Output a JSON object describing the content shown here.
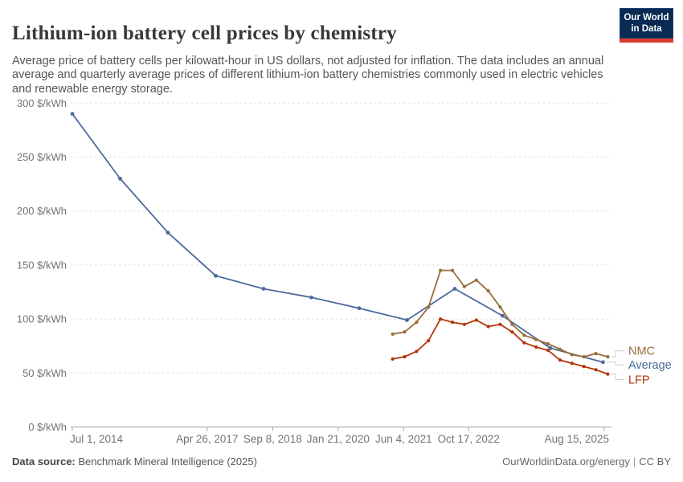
{
  "header": {
    "title": "Lithium-ion battery cell prices by chemistry",
    "subtitle": "Average price of battery cells per kilowatt-hour in US dollars, not adjusted for inflation. The data includes an annual average and quarterly average prices of different lithium-ion battery chemistries commonly used in electric vehicles and renewable energy storage.",
    "logo": {
      "line1": "Our World",
      "line2": "in Data"
    }
  },
  "chart_data": {
    "type": "line",
    "title": "Lithium-ion battery cell prices by chemistry",
    "ylabel": "$/kWh",
    "xlabel": "",
    "grid": true,
    "legend_position": "right-of-line-ends",
    "y_axis": {
      "min": 0,
      "max": 300,
      "tick_step": 50,
      "tick_labels": [
        "0 $/kWh",
        "50 $/kWh",
        "100 $/kWh",
        "150 $/kWh",
        "200 $/kWh",
        "250 $/kWh",
        "300 $/kWh"
      ]
    },
    "x_axis": {
      "min": 2014.5,
      "max": 2025.7,
      "ticks": [
        {
          "t": 2014.5,
          "label": "Jul 1, 2014",
          "align": "start"
        },
        {
          "t": 2017.32,
          "label": "Apr 26, 2017",
          "align": "middle"
        },
        {
          "t": 2018.69,
          "label": "Sep 8, 2018",
          "align": "middle"
        },
        {
          "t": 2020.06,
          "label": "Jan 21, 2020",
          "align": "middle"
        },
        {
          "t": 2021.43,
          "label": "Jun 4, 2021",
          "align": "middle"
        },
        {
          "t": 2022.79,
          "label": "Oct 17, 2022",
          "align": "middle"
        },
        {
          "t": 2025.62,
          "label": "Aug 15, 2025",
          "align": "end"
        }
      ]
    },
    "series": [
      {
        "name": "Average",
        "color": "#4C6A9C",
        "cadence": "annual",
        "label_y_value": 57.5,
        "points": [
          [
            2014.5,
            290
          ],
          [
            2015.5,
            230
          ],
          [
            2016.5,
            180
          ],
          [
            2017.5,
            140
          ],
          [
            2018.5,
            128
          ],
          [
            2019.5,
            120
          ],
          [
            2020.5,
            110
          ],
          [
            2021.5,
            99
          ],
          [
            2022.5,
            128
          ],
          [
            2023.5,
            103
          ],
          [
            2024.5,
            73
          ],
          [
            2025.6,
            60
          ]
        ]
      },
      {
        "name": "NMC",
        "color": "#996D39",
        "cadence": "quarterly",
        "label_y_value": 70.5,
        "points": [
          [
            2021.2,
            86
          ],
          [
            2021.45,
            88
          ],
          [
            2021.7,
            97
          ],
          [
            2021.95,
            111
          ],
          [
            2022.2,
            145
          ],
          [
            2022.45,
            145
          ],
          [
            2022.7,
            130
          ],
          [
            2022.95,
            136
          ],
          [
            2023.2,
            126
          ],
          [
            2023.45,
            111
          ],
          [
            2023.7,
            95
          ],
          [
            2023.95,
            85
          ],
          [
            2024.2,
            81
          ],
          [
            2024.45,
            77
          ],
          [
            2024.7,
            72
          ],
          [
            2024.95,
            67
          ],
          [
            2025.2,
            65
          ],
          [
            2025.45,
            68
          ],
          [
            2025.7,
            65
          ]
        ]
      },
      {
        "name": "LFP",
        "color": "#B13507",
        "cadence": "quarterly",
        "label_y_value": 44,
        "points": [
          [
            2021.2,
            63
          ],
          [
            2021.45,
            65
          ],
          [
            2021.7,
            70
          ],
          [
            2021.95,
            80
          ],
          [
            2022.2,
            100
          ],
          [
            2022.45,
            97
          ],
          [
            2022.7,
            95
          ],
          [
            2022.95,
            99
          ],
          [
            2023.2,
            93
          ],
          [
            2023.45,
            95
          ],
          [
            2023.7,
            88
          ],
          [
            2023.95,
            78
          ],
          [
            2024.2,
            74
          ],
          [
            2024.45,
            71
          ],
          [
            2024.7,
            62
          ],
          [
            2024.95,
            59
          ],
          [
            2025.2,
            56
          ],
          [
            2025.45,
            53
          ],
          [
            2025.7,
            49
          ]
        ]
      }
    ],
    "colors": {
      "grid": "#dcdcdc",
      "axis": "#a5a5a5",
      "axis_text": "#737373",
      "connector": "#cccccc"
    }
  },
  "footer": {
    "source_label": "Data source:",
    "source_value": "Benchmark Mineral Intelligence (2025)",
    "link": "OurWorldinData.org/energy",
    "separator": "|",
    "license": "CC BY"
  }
}
